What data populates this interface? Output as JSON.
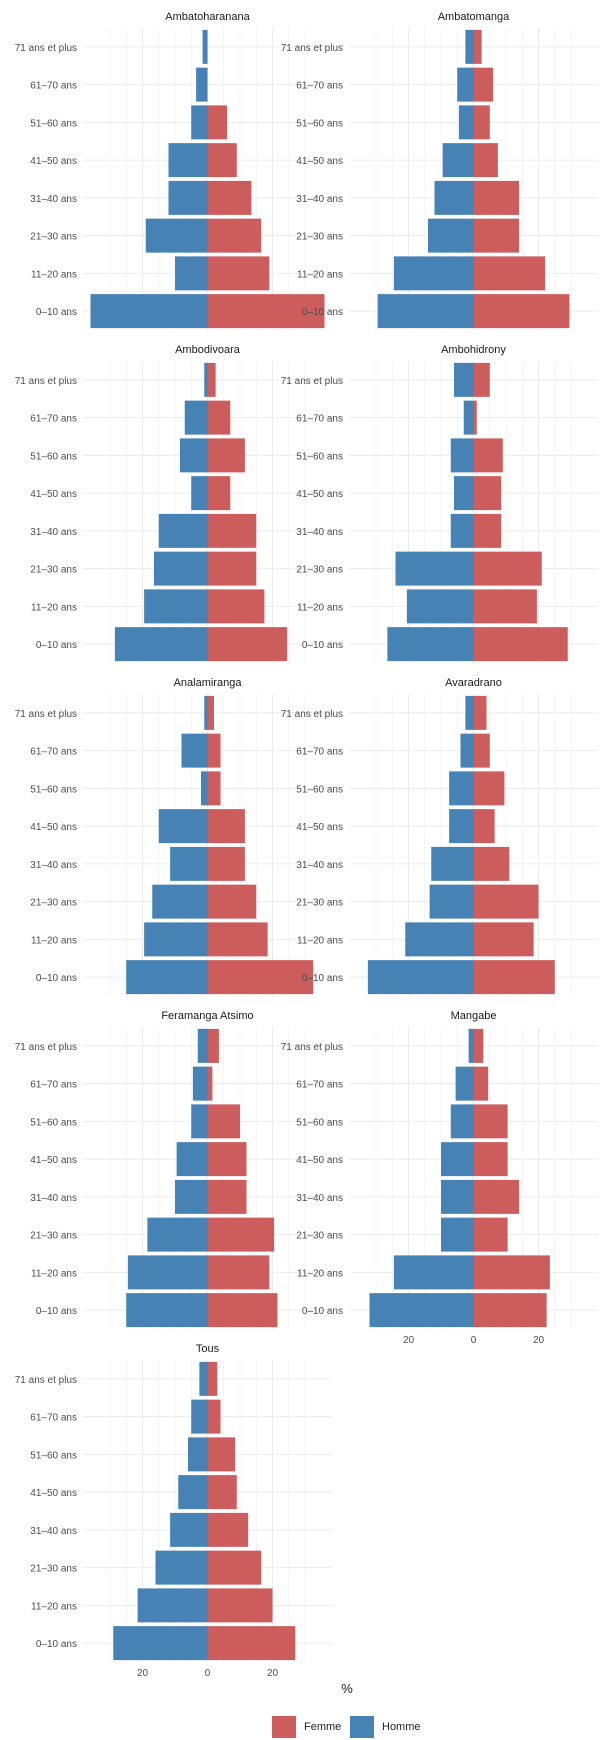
{
  "colors": {
    "femme": "#CD5C5C",
    "homme": "#4682B4",
    "grid": "#ebebeb",
    "text": "#4d4d4d",
    "title": "#1a1a1a"
  },
  "legend": {
    "femme": "Femme",
    "homme": "Homme"
  },
  "xlabel": "%",
  "chart_data": {
    "type": "bar",
    "orientation": "horizontal",
    "subtype": "population-pyramid-facets",
    "categories": [
      "0–10 ans",
      "11–20 ans",
      "21–30 ans",
      "31–40 ans",
      "41–50 ans",
      "51–60 ans",
      "61–70 ans",
      "71 ans et plus"
    ],
    "x_ticks": [
      20,
      0,
      20
    ],
    "xlim": [
      -35,
      35
    ],
    "xlabel": "%",
    "legend_position": "bottom",
    "grid": true,
    "series_names": [
      "Femme",
      "Homme"
    ],
    "facets": [
      {
        "title": "Ambatoharanana",
        "femme": [
          36,
          19,
          16.5,
          13.5,
          9,
          6,
          0,
          0
        ],
        "homme": [
          36,
          10,
          19,
          12,
          12,
          5,
          3.5,
          1.5
        ]
      },
      {
        "title": "Ambatomanga",
        "femme": [
          29.5,
          22,
          14,
          14,
          7.5,
          5,
          6,
          2.5
        ],
        "homme": [
          29.5,
          24.5,
          14,
          12,
          9.5,
          4.5,
          5,
          2.5
        ]
      },
      {
        "title": "Ambodivoara",
        "femme": [
          24.5,
          17.5,
          15,
          15,
          7,
          11.5,
          7,
          2.5
        ],
        "homme": [
          28.5,
          19.5,
          16.5,
          15,
          5,
          8.5,
          7,
          1
        ]
      },
      {
        "title": "Ambohidrony",
        "femme": [
          29,
          19.5,
          21,
          8.5,
          8.5,
          9,
          1,
          5
        ],
        "homme": [
          26.5,
          20.5,
          24,
          7,
          6,
          7,
          3,
          6
        ]
      },
      {
        "title": "Analamiranga",
        "femme": [
          32.5,
          18.5,
          15,
          11.5,
          11.5,
          4,
          4,
          2
        ],
        "homme": [
          25,
          19.5,
          17,
          11.5,
          15,
          2,
          8,
          1
        ]
      },
      {
        "title": "Avaradrano",
        "femme": [
          25,
          18.5,
          20,
          11,
          6.5,
          9.5,
          5,
          4
        ],
        "homme": [
          32.5,
          21,
          13.5,
          13,
          7.5,
          7.5,
          4,
          2.5
        ]
      },
      {
        "title": "Feramanga Atsimo",
        "femme": [
          21.5,
          19,
          20.5,
          12,
          12,
          10,
          1.5,
          3.5
        ],
        "homme": [
          25,
          24.5,
          18.5,
          10,
          9.5,
          5,
          4.5,
          3
        ]
      },
      {
        "title": "Mangabe",
        "femme": [
          22.5,
          23.5,
          10.5,
          14,
          10.5,
          10.5,
          4.5,
          3
        ],
        "homme": [
          32,
          24.5,
          10,
          10,
          10,
          7,
          5.5,
          1.5
        ]
      },
      {
        "title": "Tous",
        "femme": [
          27,
          20,
          16.5,
          12.5,
          9,
          8.5,
          4,
          3
        ],
        "homme": [
          29,
          21.5,
          16,
          11.5,
          9,
          6,
          5,
          2.5
        ]
      }
    ]
  }
}
